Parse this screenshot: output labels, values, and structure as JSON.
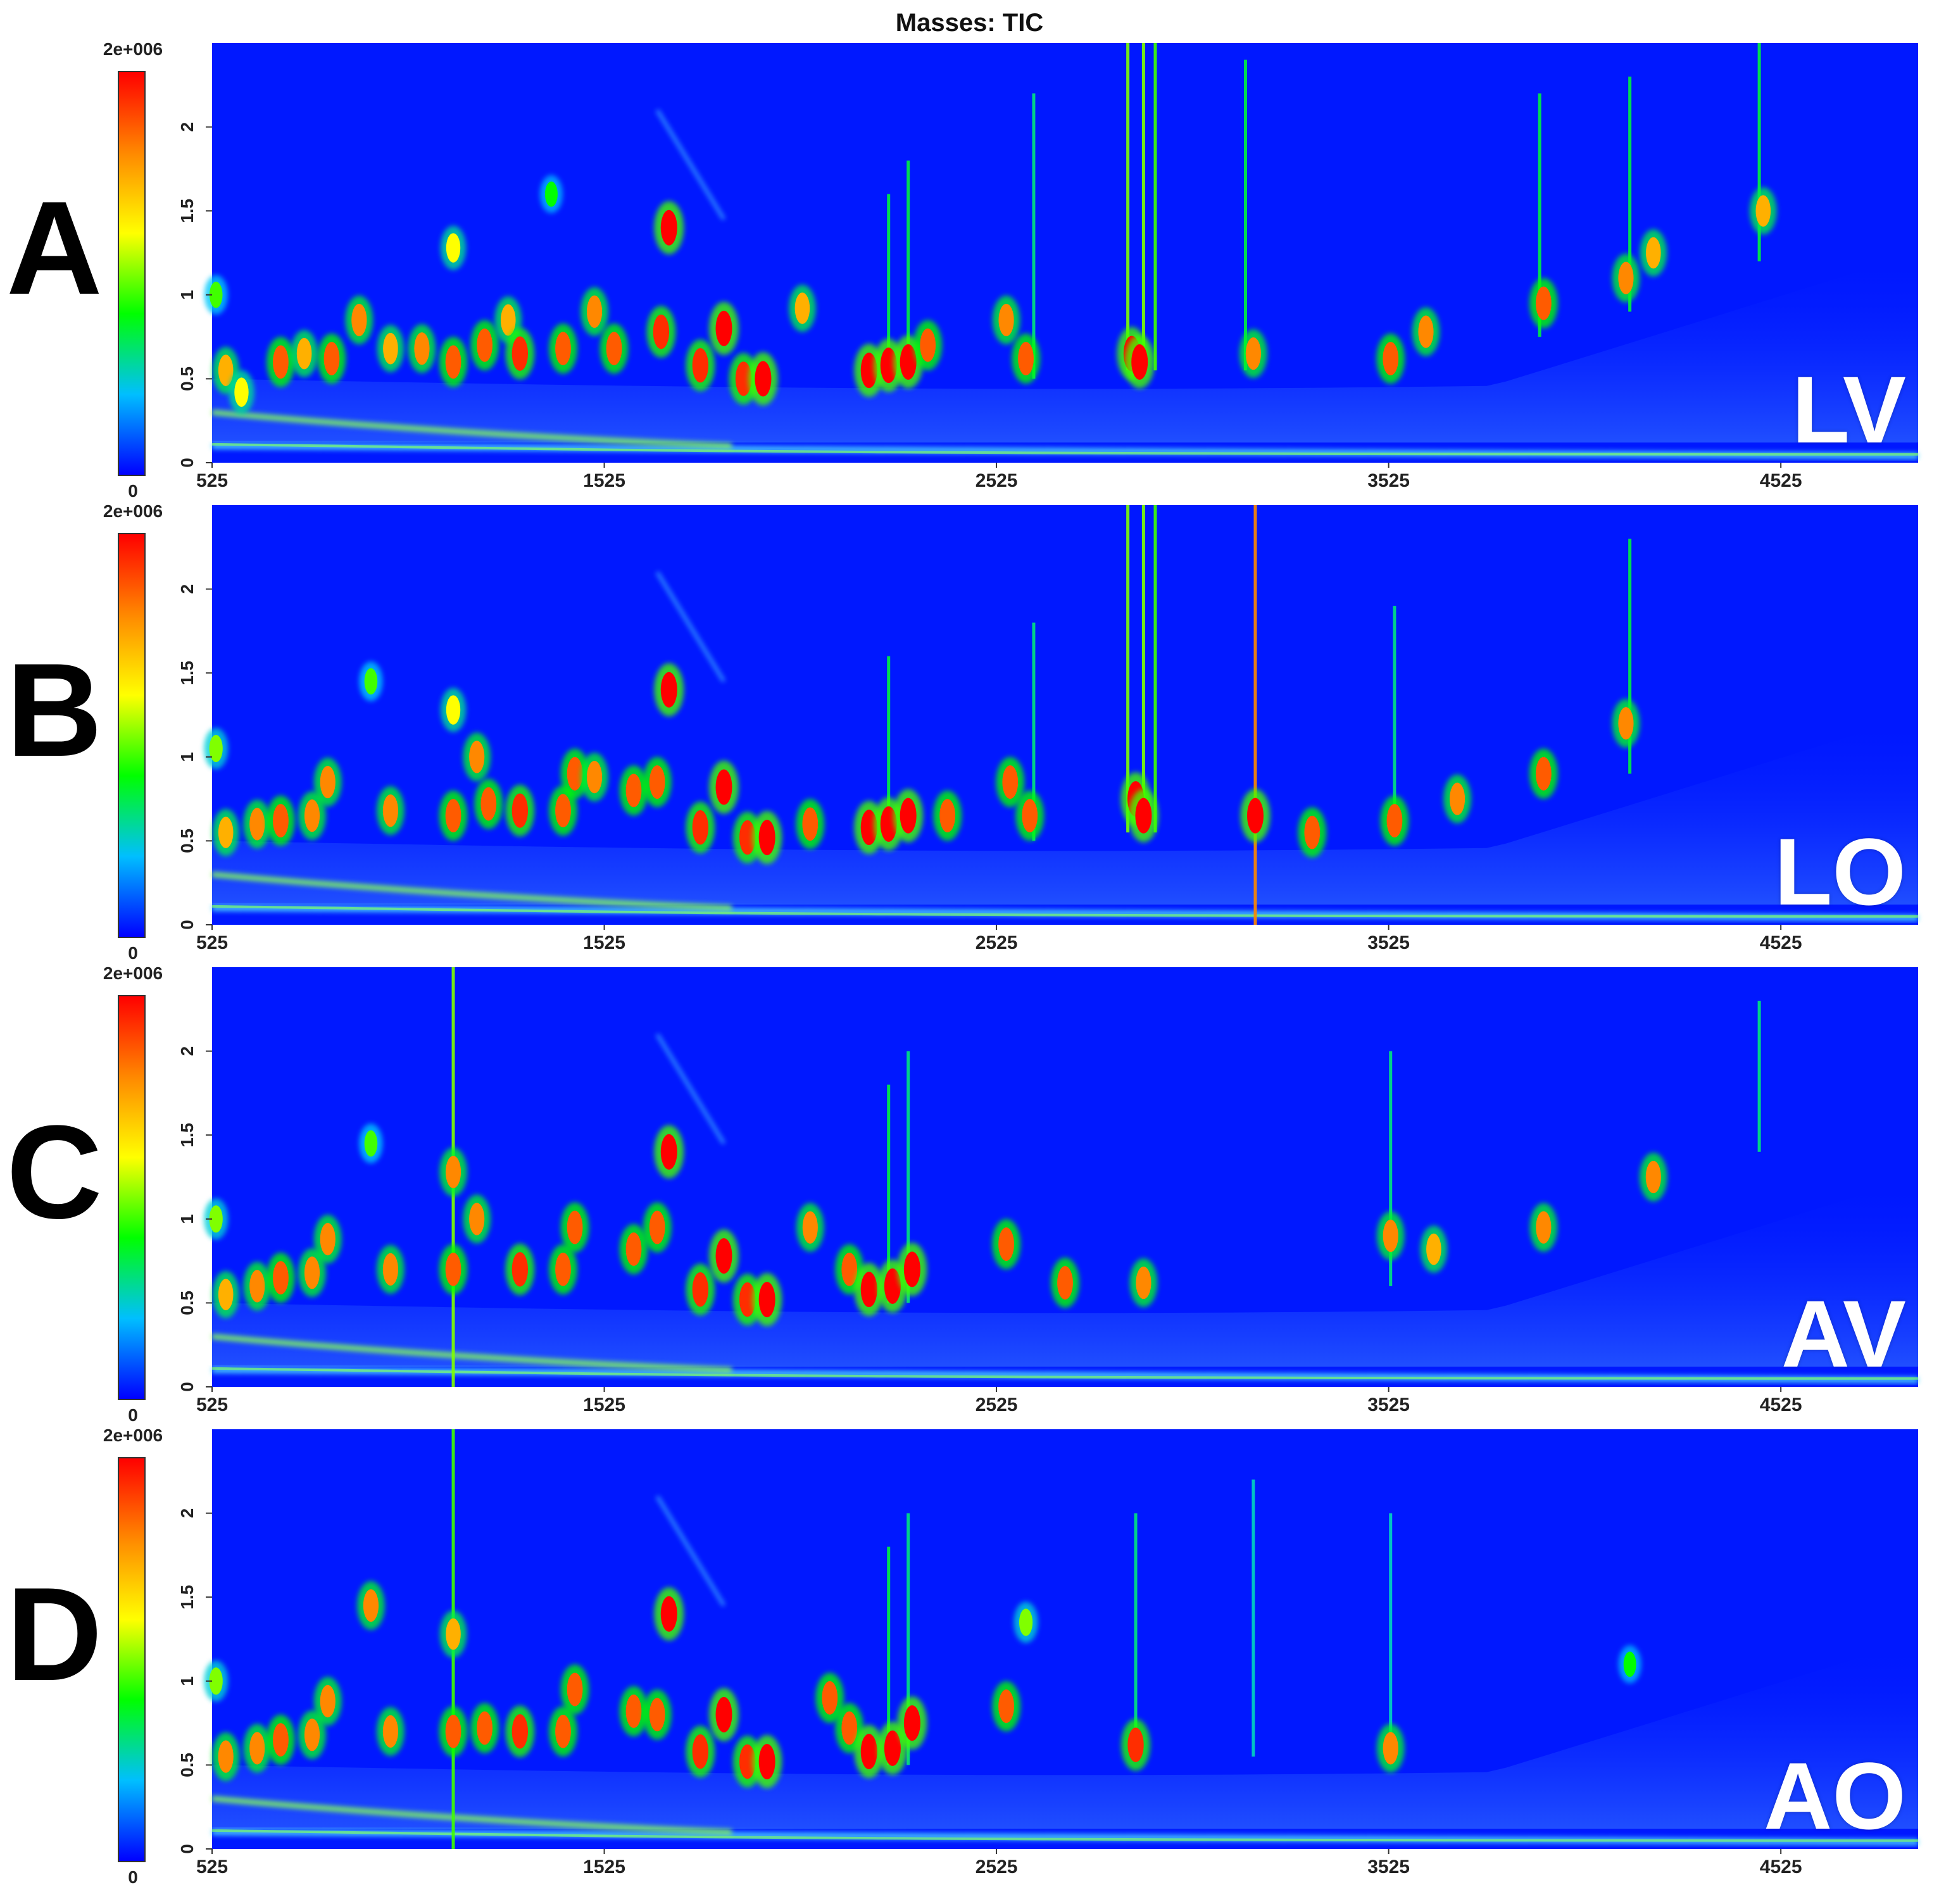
{
  "figure_title": "Masses:  TIC",
  "colors": {
    "background": "#0018ff",
    "colorscale": [
      "#0000ff",
      "#00bfff",
      "#00ff00",
      "#ffff00",
      "#ff8800",
      "#ff0000"
    ]
  },
  "panels": [
    {
      "letter": "A",
      "sample": "LV",
      "colorbar_max": "2e+006",
      "colorbar_min": "0"
    },
    {
      "letter": "B",
      "sample": "LO",
      "colorbar_max": "2e+006",
      "colorbar_min": "0"
    },
    {
      "letter": "C",
      "sample": "AV",
      "colorbar_max": "2e+006",
      "colorbar_min": "0"
    },
    {
      "letter": "D",
      "sample": "AO",
      "colorbar_max": "2e+006",
      "colorbar_min": "0"
    }
  ],
  "chart_data": [
    {
      "type": "heatmap",
      "title": "Masses:  TIC",
      "subplot_letter": "A",
      "annotation": "LV",
      "xlim": [
        525,
        4875
      ],
      "ylim": [
        0,
        2.5
      ],
      "x_ticks": [
        "525",
        "1525",
        "2525",
        "3525",
        "4525"
      ],
      "y_ticks": [
        "0",
        "0.5",
        "1",
        "1.5",
        "2"
      ],
      "colorbar": {
        "min": "0",
        "max": "2e+006"
      },
      "peaks": [
        {
          "x": 535,
          "y": 1.0,
          "i": 0.55
        },
        {
          "x": 560,
          "y": 0.55,
          "i": 0.8
        },
        {
          "x": 600,
          "y": 0.42,
          "i": 0.7
        },
        {
          "x": 700,
          "y": 0.6,
          "i": 0.9
        },
        {
          "x": 760,
          "y": 0.65,
          "i": 0.8
        },
        {
          "x": 830,
          "y": 0.62,
          "i": 0.9
        },
        {
          "x": 900,
          "y": 0.85,
          "i": 0.85
        },
        {
          "x": 980,
          "y": 0.68,
          "i": 0.8
        },
        {
          "x": 1060,
          "y": 0.68,
          "i": 0.85
        },
        {
          "x": 1140,
          "y": 0.6,
          "i": 0.9
        },
        {
          "x": 1140,
          "y": 1.28,
          "i": 0.7
        },
        {
          "x": 1220,
          "y": 0.7,
          "i": 0.9
        },
        {
          "x": 1280,
          "y": 0.85,
          "i": 0.8
        },
        {
          "x": 1310,
          "y": 0.65,
          "i": 0.95
        },
        {
          "x": 1390,
          "y": 1.6,
          "i": 0.5
        },
        {
          "x": 1420,
          "y": 0.68,
          "i": 0.9
        },
        {
          "x": 1500,
          "y": 0.9,
          "i": 0.85
        },
        {
          "x": 1550,
          "y": 0.68,
          "i": 0.9
        },
        {
          "x": 1670,
          "y": 0.78,
          "i": 0.95
        },
        {
          "x": 1690,
          "y": 1.4,
          "i": 1.0
        },
        {
          "x": 1770,
          "y": 0.58,
          "i": 0.95
        },
        {
          "x": 1830,
          "y": 0.8,
          "i": 1.0
        },
        {
          "x": 1880,
          "y": 0.5,
          "i": 0.95
        },
        {
          "x": 1930,
          "y": 0.5,
          "i": 1.0
        },
        {
          "x": 2030,
          "y": 0.92,
          "i": 0.8
        },
        {
          "x": 2200,
          "y": 0.55,
          "i": 1.0
        },
        {
          "x": 2250,
          "y": 0.58,
          "i": 1.0
        },
        {
          "x": 2300,
          "y": 0.6,
          "i": 1.0
        },
        {
          "x": 2350,
          "y": 0.7,
          "i": 0.9
        },
        {
          "x": 2550,
          "y": 0.85,
          "i": 0.85
        },
        {
          "x": 2600,
          "y": 0.62,
          "i": 0.9
        },
        {
          "x": 2870,
          "y": 0.65,
          "i": 1.0
        },
        {
          "x": 2890,
          "y": 0.6,
          "i": 1.0
        },
        {
          "x": 3180,
          "y": 0.65,
          "i": 0.85
        },
        {
          "x": 3530,
          "y": 0.62,
          "i": 0.9
        },
        {
          "x": 3620,
          "y": 0.78,
          "i": 0.85
        },
        {
          "x": 3920,
          "y": 0.95,
          "i": 0.9
        },
        {
          "x": 4130,
          "y": 1.1,
          "i": 0.85
        },
        {
          "x": 4200,
          "y": 1.25,
          "i": 0.8
        },
        {
          "x": 4480,
          "y": 1.5,
          "i": 0.8
        }
      ],
      "streaks": [
        {
          "x": 2860,
          "y0": 0.55,
          "y1": 2.5,
          "i": 0.6
        },
        {
          "x": 2900,
          "y0": 0.55,
          "y1": 2.5,
          "i": 0.6
        },
        {
          "x": 2930,
          "y0": 0.55,
          "y1": 2.5,
          "i": 0.55
        },
        {
          "x": 3160,
          "y0": 0.55,
          "y1": 2.4,
          "i": 0.45
        },
        {
          "x": 2250,
          "y0": 0.5,
          "y1": 1.6,
          "i": 0.45
        },
        {
          "x": 2300,
          "y0": 0.5,
          "y1": 1.8,
          "i": 0.45
        },
        {
          "x": 2620,
          "y0": 0.5,
          "y1": 2.2,
          "i": 0.4
        },
        {
          "x": 3910,
          "y0": 0.75,
          "y1": 2.2,
          "i": 0.45
        },
        {
          "x": 4140,
          "y0": 0.9,
          "y1": 2.3,
          "i": 0.45
        },
        {
          "x": 4470,
          "y0": 1.2,
          "y1": 2.5,
          "i": 0.45
        }
      ]
    },
    {
      "type": "heatmap",
      "subplot_letter": "B",
      "annotation": "LO",
      "xlim": [
        525,
        4875
      ],
      "ylim": [
        0,
        2.5
      ],
      "x_ticks": [
        "525",
        "1525",
        "2525",
        "3525",
        "4525"
      ],
      "y_ticks": [
        "0",
        "0.5",
        "1",
        "1.5",
        "2"
      ],
      "colorbar": {
        "min": "0",
        "max": "2e+006"
      },
      "peaks": [
        {
          "x": 535,
          "y": 1.05,
          "i": 0.6
        },
        {
          "x": 560,
          "y": 0.55,
          "i": 0.8
        },
        {
          "x": 640,
          "y": 0.6,
          "i": 0.85
        },
        {
          "x": 700,
          "y": 0.62,
          "i": 0.9
        },
        {
          "x": 780,
          "y": 0.65,
          "i": 0.85
        },
        {
          "x": 820,
          "y": 0.85,
          "i": 0.85
        },
        {
          "x": 930,
          "y": 1.45,
          "i": 0.55
        },
        {
          "x": 980,
          "y": 0.68,
          "i": 0.85
        },
        {
          "x": 1140,
          "y": 0.65,
          "i": 0.9
        },
        {
          "x": 1140,
          "y": 1.28,
          "i": 0.7
        },
        {
          "x": 1200,
          "y": 1.0,
          "i": 0.85
        },
        {
          "x": 1230,
          "y": 0.72,
          "i": 0.9
        },
        {
          "x": 1310,
          "y": 0.68,
          "i": 0.95
        },
        {
          "x": 1420,
          "y": 0.68,
          "i": 0.9
        },
        {
          "x": 1450,
          "y": 0.9,
          "i": 0.9
        },
        {
          "x": 1500,
          "y": 0.88,
          "i": 0.85
        },
        {
          "x": 1600,
          "y": 0.8,
          "i": 0.9
        },
        {
          "x": 1660,
          "y": 0.85,
          "i": 0.9
        },
        {
          "x": 1690,
          "y": 1.4,
          "i": 1.0
        },
        {
          "x": 1770,
          "y": 0.58,
          "i": 0.95
        },
        {
          "x": 1830,
          "y": 0.82,
          "i": 1.0
        },
        {
          "x": 1890,
          "y": 0.52,
          "i": 0.95
        },
        {
          "x": 1940,
          "y": 0.52,
          "i": 1.0
        },
        {
          "x": 2050,
          "y": 0.6,
          "i": 0.9
        },
        {
          "x": 2200,
          "y": 0.58,
          "i": 1.0
        },
        {
          "x": 2250,
          "y": 0.6,
          "i": 1.0
        },
        {
          "x": 2300,
          "y": 0.65,
          "i": 1.0
        },
        {
          "x": 2400,
          "y": 0.65,
          "i": 0.9
        },
        {
          "x": 2560,
          "y": 0.85,
          "i": 0.9
        },
        {
          "x": 2610,
          "y": 0.65,
          "i": 0.9
        },
        {
          "x": 2880,
          "y": 0.75,
          "i": 1.0
        },
        {
          "x": 2900,
          "y": 0.65,
          "i": 1.0
        },
        {
          "x": 3185,
          "y": 0.65,
          "i": 1.0
        },
        {
          "x": 3330,
          "y": 0.55,
          "i": 0.9
        },
        {
          "x": 3540,
          "y": 0.62,
          "i": 0.9
        },
        {
          "x": 3700,
          "y": 0.75,
          "i": 0.85
        },
        {
          "x": 3920,
          "y": 0.9,
          "i": 0.9
        },
        {
          "x": 4130,
          "y": 1.2,
          "i": 0.85
        }
      ],
      "streaks": [
        {
          "x": 2860,
          "y0": 0.55,
          "y1": 2.5,
          "i": 0.6
        },
        {
          "x": 2900,
          "y0": 0.55,
          "y1": 2.5,
          "i": 0.6
        },
        {
          "x": 2930,
          "y0": 0.55,
          "y1": 2.5,
          "i": 0.55
        },
        {
          "x": 3185,
          "y0": 0.0,
          "y1": 2.5,
          "i": 0.85
        },
        {
          "x": 2250,
          "y0": 0.5,
          "y1": 1.6,
          "i": 0.45
        },
        {
          "x": 2620,
          "y0": 0.5,
          "y1": 1.8,
          "i": 0.4
        },
        {
          "x": 3540,
          "y0": 0.55,
          "y1": 1.9,
          "i": 0.4
        },
        {
          "x": 4140,
          "y0": 0.9,
          "y1": 2.3,
          "i": 0.45
        }
      ]
    },
    {
      "type": "heatmap",
      "subplot_letter": "C",
      "annotation": "AV",
      "xlim": [
        525,
        4875
      ],
      "ylim": [
        0,
        2.5
      ],
      "x_ticks": [
        "525",
        "1525",
        "2525",
        "3525",
        "4525"
      ],
      "y_ticks": [
        "0",
        "0.5",
        "1",
        "1.5",
        "2"
      ],
      "colorbar": {
        "min": "0",
        "max": "2e+006"
      },
      "peaks": [
        {
          "x": 535,
          "y": 1.0,
          "i": 0.6
        },
        {
          "x": 560,
          "y": 0.55,
          "i": 0.8
        },
        {
          "x": 640,
          "y": 0.6,
          "i": 0.85
        },
        {
          "x": 700,
          "y": 0.65,
          "i": 0.9
        },
        {
          "x": 780,
          "y": 0.68,
          "i": 0.85
        },
        {
          "x": 820,
          "y": 0.88,
          "i": 0.85
        },
        {
          "x": 930,
          "y": 1.45,
          "i": 0.55
        },
        {
          "x": 980,
          "y": 0.7,
          "i": 0.85
        },
        {
          "x": 1140,
          "y": 0.7,
          "i": 0.9
        },
        {
          "x": 1140,
          "y": 1.28,
          "i": 0.85
        },
        {
          "x": 1200,
          "y": 1.0,
          "i": 0.85
        },
        {
          "x": 1310,
          "y": 0.7,
          "i": 0.95
        },
        {
          "x": 1420,
          "y": 0.7,
          "i": 0.9
        },
        {
          "x": 1450,
          "y": 0.95,
          "i": 0.9
        },
        {
          "x": 1600,
          "y": 0.82,
          "i": 0.9
        },
        {
          "x": 1660,
          "y": 0.95,
          "i": 0.9
        },
        {
          "x": 1690,
          "y": 1.4,
          "i": 1.0
        },
        {
          "x": 1770,
          "y": 0.58,
          "i": 0.95
        },
        {
          "x": 1830,
          "y": 0.78,
          "i": 1.0
        },
        {
          "x": 1890,
          "y": 0.52,
          "i": 0.95
        },
        {
          "x": 1940,
          "y": 0.52,
          "i": 1.0
        },
        {
          "x": 2050,
          "y": 0.95,
          "i": 0.85
        },
        {
          "x": 2150,
          "y": 0.7,
          "i": 0.9
        },
        {
          "x": 2200,
          "y": 0.58,
          "i": 1.0
        },
        {
          "x": 2260,
          "y": 0.6,
          "i": 1.0
        },
        {
          "x": 2310,
          "y": 0.7,
          "i": 1.0
        },
        {
          "x": 2550,
          "y": 0.85,
          "i": 0.9
        },
        {
          "x": 2700,
          "y": 0.62,
          "i": 0.9
        },
        {
          "x": 2900,
          "y": 0.62,
          "i": 0.85
        },
        {
          "x": 3530,
          "y": 0.9,
          "i": 0.85
        },
        {
          "x": 3640,
          "y": 0.82,
          "i": 0.8
        },
        {
          "x": 3920,
          "y": 0.95,
          "i": 0.85
        },
        {
          "x": 4200,
          "y": 1.25,
          "i": 0.85
        }
      ],
      "streaks": [
        {
          "x": 1140,
          "y0": 0.0,
          "y1": 2.5,
          "i": 0.6
        },
        {
          "x": 2250,
          "y0": 0.5,
          "y1": 1.8,
          "i": 0.45
        },
        {
          "x": 2300,
          "y0": 0.5,
          "y1": 2.0,
          "i": 0.4
        },
        {
          "x": 3530,
          "y0": 0.6,
          "y1": 2.0,
          "i": 0.4
        },
        {
          "x": 4470,
          "y0": 1.4,
          "y1": 2.3,
          "i": 0.4
        }
      ]
    },
    {
      "type": "heatmap",
      "subplot_letter": "D",
      "annotation": "AO",
      "xlim": [
        525,
        4875
      ],
      "ylim": [
        0,
        2.5
      ],
      "x_ticks": [
        "525",
        "1525",
        "2525",
        "3525",
        "4525"
      ],
      "y_ticks": [
        "0",
        "0.5",
        "1",
        "1.5",
        "2"
      ],
      "colorbar": {
        "min": "0",
        "max": "2e+006"
      },
      "peaks": [
        {
          "x": 535,
          "y": 1.0,
          "i": 0.6
        },
        {
          "x": 560,
          "y": 0.55,
          "i": 0.85
        },
        {
          "x": 640,
          "y": 0.6,
          "i": 0.85
        },
        {
          "x": 700,
          "y": 0.65,
          "i": 0.9
        },
        {
          "x": 780,
          "y": 0.68,
          "i": 0.85
        },
        {
          "x": 820,
          "y": 0.88,
          "i": 0.85
        },
        {
          "x": 930,
          "y": 1.45,
          "i": 0.85
        },
        {
          "x": 980,
          "y": 0.7,
          "i": 0.85
        },
        {
          "x": 1140,
          "y": 0.7,
          "i": 0.9
        },
        {
          "x": 1140,
          "y": 1.28,
          "i": 0.8
        },
        {
          "x": 1220,
          "y": 0.72,
          "i": 0.9
        },
        {
          "x": 1310,
          "y": 0.7,
          "i": 0.95
        },
        {
          "x": 1420,
          "y": 0.7,
          "i": 0.9
        },
        {
          "x": 1450,
          "y": 0.95,
          "i": 0.9
        },
        {
          "x": 1600,
          "y": 0.82,
          "i": 0.9
        },
        {
          "x": 1660,
          "y": 0.8,
          "i": 0.9
        },
        {
          "x": 1690,
          "y": 1.4,
          "i": 1.0
        },
        {
          "x": 1770,
          "y": 0.58,
          "i": 0.95
        },
        {
          "x": 1830,
          "y": 0.8,
          "i": 1.0
        },
        {
          "x": 1890,
          "y": 0.52,
          "i": 0.95
        },
        {
          "x": 1940,
          "y": 0.52,
          "i": 1.0
        },
        {
          "x": 2100,
          "y": 0.9,
          "i": 0.9
        },
        {
          "x": 2150,
          "y": 0.72,
          "i": 0.9
        },
        {
          "x": 2200,
          "y": 0.58,
          "i": 1.0
        },
        {
          "x": 2260,
          "y": 0.6,
          "i": 1.0
        },
        {
          "x": 2310,
          "y": 0.75,
          "i": 1.0
        },
        {
          "x": 2550,
          "y": 0.85,
          "i": 0.9
        },
        {
          "x": 2600,
          "y": 1.35,
          "i": 0.6
        },
        {
          "x": 2880,
          "y": 0.62,
          "i": 0.95
        },
        {
          "x": 3530,
          "y": 0.6,
          "i": 0.85
        },
        {
          "x": 4140,
          "y": 1.1,
          "i": 0.5
        }
      ],
      "streaks": [
        {
          "x": 1140,
          "y0": 0.0,
          "y1": 2.5,
          "i": 0.55
        },
        {
          "x": 2250,
          "y0": 0.5,
          "y1": 1.8,
          "i": 0.45
        },
        {
          "x": 2300,
          "y0": 0.5,
          "y1": 2.0,
          "i": 0.4
        },
        {
          "x": 2880,
          "y0": 0.55,
          "y1": 2.0,
          "i": 0.4
        },
        {
          "x": 3180,
          "y0": 0.55,
          "y1": 2.2,
          "i": 0.35
        },
        {
          "x": 3530,
          "y0": 0.55,
          "y1": 2.0,
          "i": 0.35
        }
      ]
    }
  ]
}
